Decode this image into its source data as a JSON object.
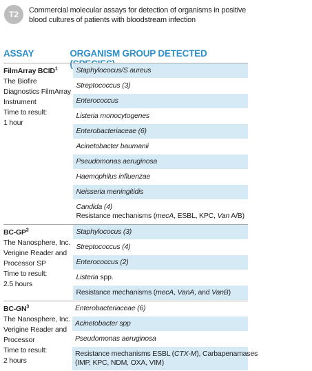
{
  "header": {
    "badge": "T2",
    "title": "Commercial molecular assays for detection of organisms in positive blood cultures of patients with bloodstream infection"
  },
  "table": {
    "columns": [
      "ASSAY",
      "ORGANISM GROUP DETECTED (SPECIES)"
    ],
    "groups": [
      {
        "assay": {
          "name": "FilmArray BCID",
          "sup": "1",
          "lines": [
            "The Biofire",
            "Diagnostics FilmArray",
            "Instrument",
            "Time to result:",
            "1 hour"
          ]
        },
        "rows": [
          {
            "shaded": true,
            "lines": [
              [
                {
                  "text": "Staphylococus/S aureus",
                  "italic": true
                }
              ]
            ]
          },
          {
            "shaded": false,
            "lines": [
              [
                {
                  "text": "Streptococcus (3)",
                  "italic": true
                }
              ]
            ]
          },
          {
            "shaded": true,
            "lines": [
              [
                {
                  "text": "Enterococcus",
                  "italic": true
                }
              ]
            ]
          },
          {
            "shaded": false,
            "lines": [
              [
                {
                  "text": "Listeria monocytogenes",
                  "italic": true
                }
              ]
            ]
          },
          {
            "shaded": true,
            "lines": [
              [
                {
                  "text": "Enterobacteriaceae (6)",
                  "italic": true
                }
              ]
            ]
          },
          {
            "shaded": false,
            "lines": [
              [
                {
                  "text": "Acinetobacter baumanii",
                  "italic": true
                }
              ]
            ]
          },
          {
            "shaded": true,
            "lines": [
              [
                {
                  "text": "Pseudomonas aeruginosa",
                  "italic": true
                }
              ]
            ]
          },
          {
            "shaded": false,
            "lines": [
              [
                {
                  "text": "Haemophilus influenzae",
                  "italic": true
                }
              ]
            ]
          },
          {
            "shaded": true,
            "lines": [
              [
                {
                  "text": "Neisseria meningitidis",
                  "italic": true
                }
              ]
            ]
          },
          {
            "shaded": false,
            "lines": [
              [
                {
                  "text": "Candida (4)",
                  "italic": true
                }
              ],
              [
                {
                  "text": "Resistance mechanisms (",
                  "italic": false
                },
                {
                  "text": "mecA",
                  "italic": true
                },
                {
                  "text": ", ESBL, KPC, ",
                  "italic": false
                },
                {
                  "text": "Van",
                  "italic": true
                },
                {
                  "text": " A/B)",
                  "italic": false
                }
              ]
            ]
          }
        ]
      },
      {
        "assay": {
          "name": "BC-GP",
          "sup": "2",
          "lines": [
            "The Nanosphere, Inc.",
            "Verigine Reader and",
            "Processor SP",
            "Time to result:",
            "2.5 hours"
          ]
        },
        "rows": [
          {
            "shaded": true,
            "lines": [
              [
                {
                  "text": "Staphylococus (3)",
                  "italic": true
                }
              ]
            ]
          },
          {
            "shaded": false,
            "lines": [
              [
                {
                  "text": "Streptococcus (4)",
                  "italic": true
                }
              ]
            ]
          },
          {
            "shaded": true,
            "lines": [
              [
                {
                  "text": "Enterococcus (2)",
                  "italic": true
                }
              ]
            ]
          },
          {
            "shaded": false,
            "lines": [
              [
                {
                  "text": "Listeria",
                  "italic": true
                },
                {
                  "text": " spp.",
                  "italic": false
                }
              ]
            ]
          },
          {
            "shaded": true,
            "lines": [
              [
                {
                  "text": "Resistance mechanisms (",
                  "italic": false
                },
                {
                  "text": "mecA",
                  "italic": true
                },
                {
                  "text": ", ",
                  "italic": false
                },
                {
                  "text": "VanA",
                  "italic": true
                },
                {
                  "text": ", and ",
                  "italic": false
                },
                {
                  "text": "VanB",
                  "italic": true
                },
                {
                  "text": ")",
                  "italic": false
                }
              ]
            ]
          }
        ]
      },
      {
        "assay": {
          "name": "BC-GN",
          "sup": "3",
          "lines": [
            "The Nanosphere, Inc.",
            "Verigine Reader and",
            "Processor",
            "Time to result:",
            "2 hours"
          ]
        },
        "rows": [
          {
            "shaded": false,
            "lines": [
              [
                {
                  "text": "Enterobacteriaceae (6)",
                  "italic": true
                }
              ]
            ]
          },
          {
            "shaded": true,
            "lines": [
              [
                {
                  "text": "Acinetobacter spp",
                  "italic": true
                }
              ]
            ]
          },
          {
            "shaded": false,
            "lines": [
              [
                {
                  "text": "Pseudomonas aeruginosa",
                  "italic": true
                }
              ]
            ]
          },
          {
            "shaded": true,
            "lines": [
              [
                {
                  "text": "Resistance mechanisms ESBL (",
                  "italic": false
                },
                {
                  "text": "CTX-M",
                  "italic": true
                },
                {
                  "text": "), Carbapenamases",
                  "italic": false
                }
              ],
              [
                {
                  "text": "(IMP, KPC, NDM, OXA, VIM)",
                  "italic": false
                }
              ]
            ]
          }
        ]
      }
    ]
  }
}
